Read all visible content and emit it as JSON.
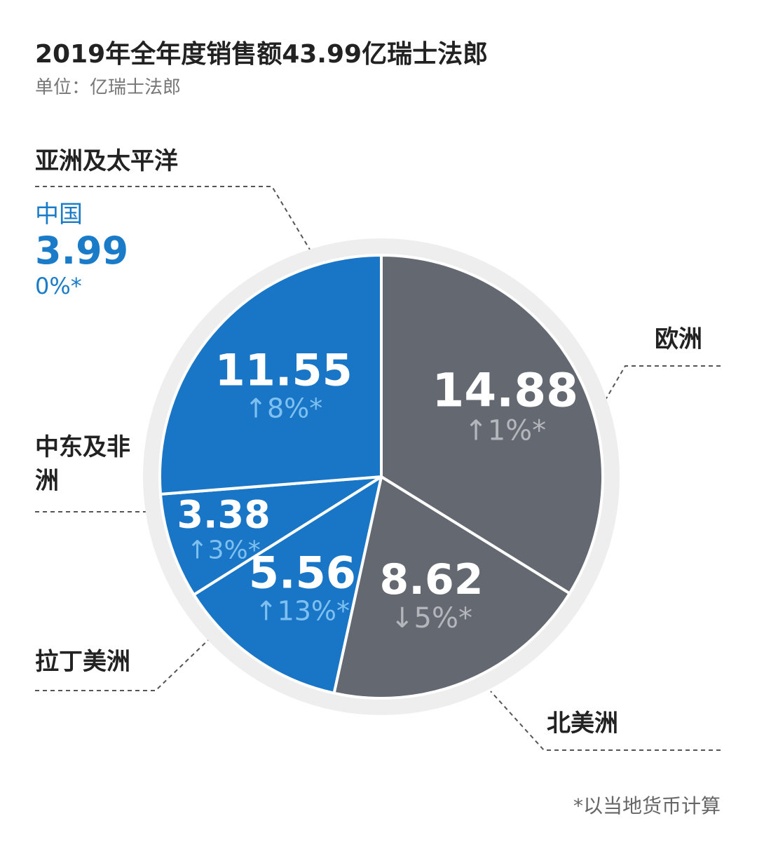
{
  "title": "2019年全年度销售额43.99亿瑞士法郎",
  "unit": "单位：亿瑞士法郎",
  "footnote": "*以当地货币计算",
  "colors": {
    "blue": "#1976c6",
    "gray": "#636871",
    "ring": "#eeeeef",
    "blue_pct": "#7fc0f0",
    "gray_pct": "#b3b6bb",
    "china_text": "#1a7cc9"
  },
  "regions": {
    "apac": "亚洲及太平洋",
    "europe": "欧洲",
    "mea": "中东及非洲",
    "latam": "拉丁美洲",
    "na": "北美洲"
  },
  "china": {
    "name": "中国",
    "value": "3.99",
    "change": "0%*"
  },
  "chart_data": {
    "type": "pie",
    "title": "2019年全年度销售额43.99亿瑞士法郎",
    "unit": "亿瑞士法郎",
    "slices": [
      {
        "name": "欧洲",
        "value": 14.88,
        "label": "14.88",
        "change": "1%*",
        "direction": "up",
        "color": "#636871"
      },
      {
        "name": "北美洲",
        "value": 8.62,
        "label": "8.62",
        "change": "5%*",
        "direction": "down",
        "color": "#636871"
      },
      {
        "name": "拉丁美洲",
        "value": 5.56,
        "label": "5.56",
        "change": "13%*",
        "direction": "up",
        "color": "#1976c6"
      },
      {
        "name": "中东及非洲",
        "value": 3.38,
        "label": "3.38",
        "change": "3%*",
        "direction": "up",
        "color": "#1976c6"
      },
      {
        "name": "亚洲及太平洋",
        "value": 11.55,
        "label": "11.55",
        "change": "8%*",
        "direction": "up",
        "color": "#1976c6"
      }
    ],
    "annotation": {
      "region": "亚洲及太平洋",
      "sub_region": "中国",
      "value": 3.99,
      "change": "0%*"
    },
    "footnote": "*以当地货币计算"
  }
}
